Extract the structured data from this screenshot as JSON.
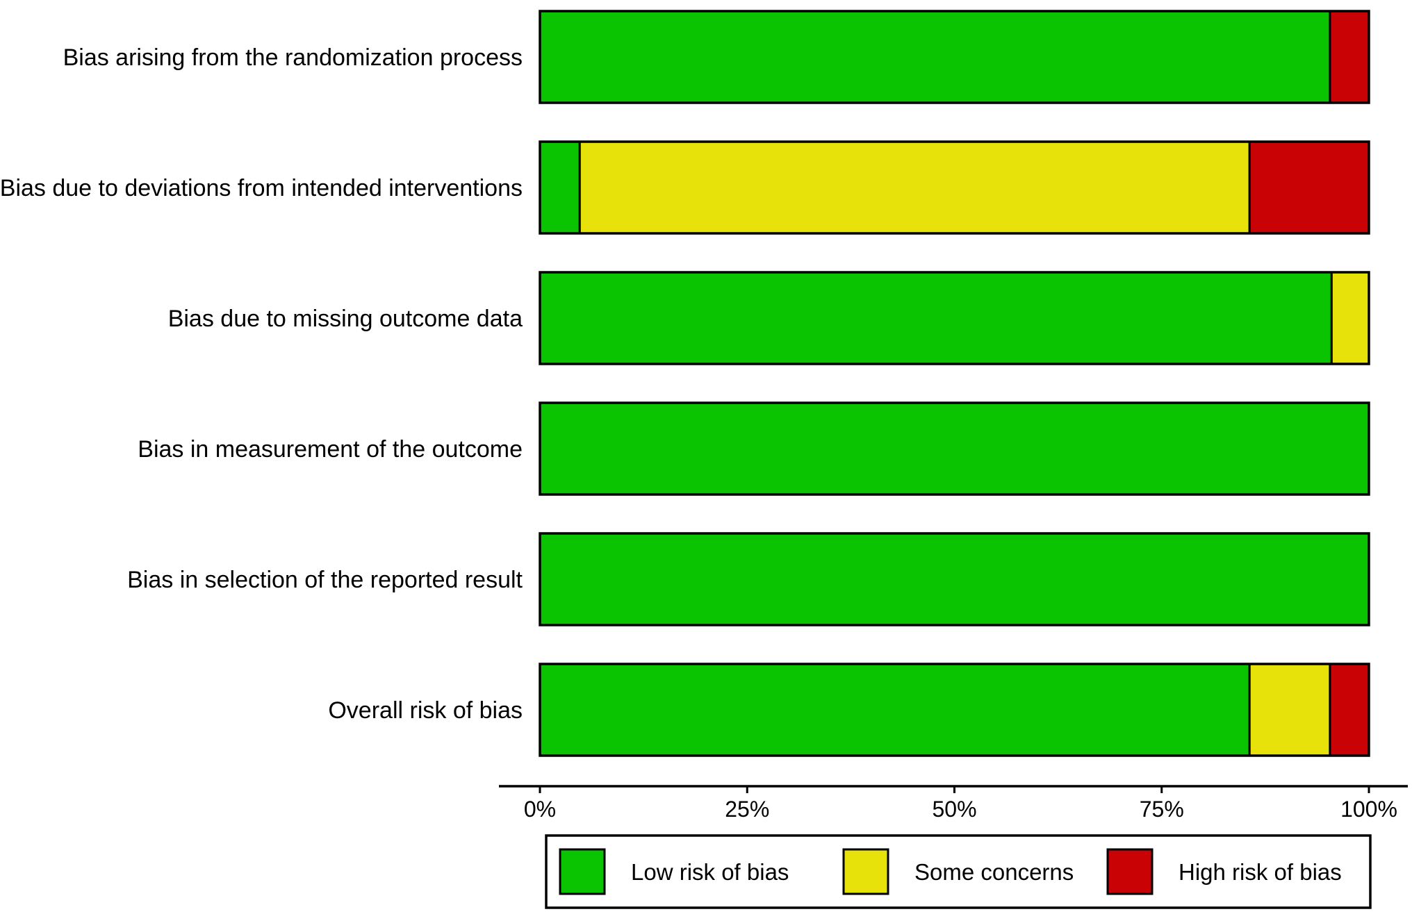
{
  "chart_data": {
    "type": "bar",
    "orientation": "horizontal",
    "stacked": true,
    "categories": [
      "Bias arising from the randomization process",
      "Bias due to deviations from intended interventions",
      "Bias due to missing outcome data",
      "Bias in measurement of the outcome",
      "Bias in selection of the reported result",
      "Overall risk of bias"
    ],
    "series": [
      {
        "name": "Low risk of bias",
        "color": "#0ac402",
        "values": [
          95.3,
          4.8,
          95.5,
          100,
          100,
          85.6
        ]
      },
      {
        "name": "Some concerns",
        "color": "#e6e20a",
        "values": [
          0,
          80.8,
          4.5,
          0,
          0,
          9.7
        ]
      },
      {
        "name": "High risk of bias",
        "color": "#c80205",
        "values": [
          4.7,
          14.4,
          0,
          0,
          0,
          4.7
        ]
      }
    ],
    "xlim": [
      0,
      100
    ],
    "xticks": [
      "0%",
      "25%",
      "50%",
      "75%",
      "100%"
    ],
    "xlabel": "",
    "ylabel": "",
    "grid": false,
    "legend_position": "bottom"
  }
}
